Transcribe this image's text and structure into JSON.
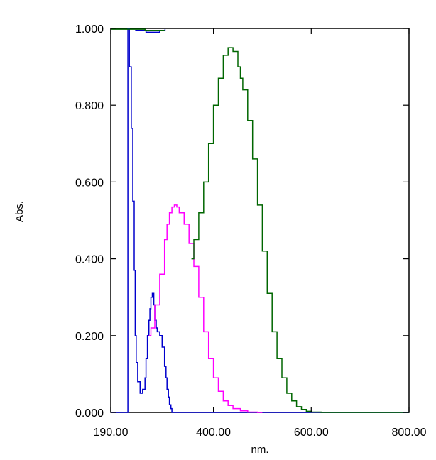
{
  "chart_data": {
    "type": "line",
    "title": "",
    "xlabel": "nm.",
    "ylabel": "Abs.",
    "xlim": [
      190,
      800
    ],
    "ylim": [
      0,
      1
    ],
    "xticks": [
      190,
      400,
      600,
      800
    ],
    "xtick_labels": [
      "190.00",
      "400.00",
      "600.00",
      "800.00"
    ],
    "yticks": [
      0,
      0.2,
      0.4,
      0.6,
      0.8,
      1.0
    ],
    "ytick_labels": [
      "0.000",
      "0.200",
      "0.400",
      "0.600",
      "0.800",
      "1.000"
    ],
    "grid": false,
    "series": [
      {
        "color": "#0000cc",
        "x": [
          190,
          200,
          225,
          228,
          232,
          235,
          238,
          240,
          242,
          245,
          250,
          255,
          260,
          262,
          265,
          268,
          270,
          272,
          275,
          278,
          280,
          283,
          285,
          290,
          295,
          300,
          303,
          305,
          308,
          310,
          313,
          315,
          320,
          330,
          800
        ],
        "y": [
          0.0,
          0.0,
          1.0,
          0.9,
          0.74,
          0.55,
          0.37,
          0.2,
          0.13,
          0.08,
          0.05,
          0.06,
          0.09,
          0.14,
          0.2,
          0.24,
          0.27,
          0.3,
          0.31,
          0.28,
          0.24,
          0.22,
          0.21,
          0.2,
          0.17,
          0.12,
          0.09,
          0.06,
          0.04,
          0.02,
          0.01,
          0.0,
          0.0,
          0.0,
          0.0
        ]
      },
      {
        "color": "#0000cc",
        "x": [
          240,
          250,
          262,
          275,
          290,
          301
        ],
        "y": [
          0.995,
          0.995,
          0.99,
          0.99,
          0.995,
          0.998
        ]
      },
      {
        "color": "#ff00ff",
        "x": [
          268,
          272,
          280,
          290,
          300,
          305,
          310,
          315,
          320,
          325,
          330,
          340,
          350,
          360,
          370,
          380,
          390,
          400,
          410,
          420,
          430,
          440,
          455,
          470,
          490,
          500
        ],
        "y": [
          0.2,
          0.22,
          0.28,
          0.36,
          0.45,
          0.49,
          0.52,
          0.535,
          0.54,
          0.535,
          0.52,
          0.49,
          0.44,
          0.38,
          0.3,
          0.21,
          0.14,
          0.09,
          0.055,
          0.03,
          0.018,
          0.01,
          0.004,
          0.001,
          0.0,
          0.0
        ]
      },
      {
        "color": "#006600",
        "x": [
          355,
          360,
          370,
          380,
          390,
          400,
          410,
          420,
          430,
          440,
          450,
          455,
          460,
          470,
          480,
          490,
          500,
          510,
          520,
          530,
          540,
          550,
          560,
          570,
          580,
          590,
          600,
          620,
          630,
          800
        ],
        "y": [
          0.4,
          0.45,
          0.52,
          0.6,
          0.7,
          0.8,
          0.87,
          0.93,
          0.95,
          0.94,
          0.9,
          0.87,
          0.84,
          0.76,
          0.66,
          0.54,
          0.42,
          0.31,
          0.21,
          0.14,
          0.09,
          0.05,
          0.03,
          0.015,
          0.008,
          0.003,
          0.001,
          0.0,
          0.0,
          0.0
        ]
      },
      {
        "color": "#006600",
        "x": [
          190,
          255,
          260,
          300
        ],
        "y": [
          0.998,
          0.998,
          0.995,
          0.995
        ]
      }
    ]
  }
}
